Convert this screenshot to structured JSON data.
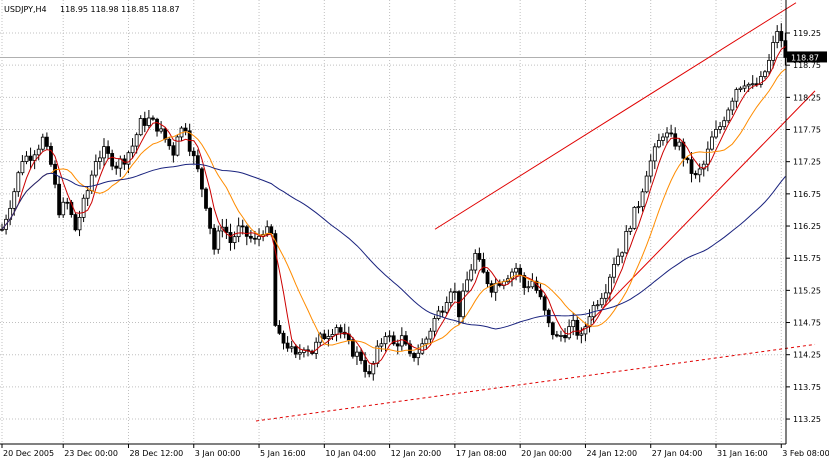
{
  "header": {
    "symbol_timeframe": "USDJPY,H4",
    "ohlc": "118.95 118.98 118.85 118.87"
  },
  "price_label": "118.87",
  "chart_data": {
    "type": "candlestick",
    "title": "USDJPY,H4",
    "ylim": [
      113.25,
      119.5
    ],
    "y_ticks": [
      "119.25",
      "118.75",
      "118.25",
      "117.75",
      "117.25",
      "116.75",
      "116.25",
      "115.75",
      "115.25",
      "114.75",
      "114.25",
      "113.75",
      "113.25"
    ],
    "y_tick_values": [
      119.25,
      118.75,
      118.25,
      117.75,
      117.25,
      116.75,
      116.25,
      115.75,
      115.25,
      114.75,
      114.25,
      113.75,
      113.25
    ],
    "x_ticks": [
      "20 Dec 2005",
      "23 Dec 00:00",
      "28 Dec 12:00",
      "3 Jan 00:00",
      "5 Jan 16:00",
      "10 Jan 04:00",
      "12 Jan 20:00",
      "17 Jan 08:00",
      "20 Jan 00:00",
      "24 Jan 12:00",
      "27 Jan 04:00",
      "31 Jan 16:00",
      "3 Feb 08:00"
    ],
    "x_tick_index": [
      0,
      15,
      31,
      47,
      63,
      79,
      95,
      111,
      127,
      143,
      159,
      175,
      191
    ],
    "bar_count": 193,
    "current_price": 118.87,
    "grid": true,
    "colors": {
      "background": "#ffffff",
      "grid": "#c0c0c0",
      "candle": "#000000",
      "ma_fast": "#cc0000",
      "ma_mid": "#ff8c00",
      "ma_slow": "#1a237e",
      "channel": "#e00000"
    },
    "anchors": [
      [
        0,
        116.2
      ],
      [
        3,
        116.8
      ],
      [
        5,
        117.3
      ],
      [
        7,
        117.35
      ],
      [
        9,
        117.5
      ],
      [
        10,
        117.6
      ],
      [
        12,
        117.2
      ],
      [
        14,
        116.5
      ],
      [
        16,
        116.6
      ],
      [
        18,
        116.2
      ],
      [
        21,
        116.8
      ],
      [
        23,
        117.3
      ],
      [
        25,
        117.4
      ],
      [
        28,
        117.2
      ],
      [
        30,
        117.3
      ],
      [
        32,
        117.5
      ],
      [
        34,
        117.85
      ],
      [
        36,
        117.9
      ],
      [
        38,
        117.8
      ],
      [
        40,
        117.6
      ],
      [
        42,
        117.4
      ],
      [
        43,
        117.7
      ],
      [
        45,
        117.8
      ],
      [
        46,
        117.5
      ],
      [
        47,
        117.3
      ],
      [
        48,
        117.1
      ],
      [
        50,
        116.6
      ],
      [
        52,
        115.9
      ],
      [
        54,
        116.3
      ],
      [
        56,
        116.0
      ],
      [
        58,
        116.2
      ],
      [
        60,
        116.1
      ],
      [
        62,
        116.0
      ],
      [
        64,
        116.2
      ],
      [
        66,
        116.1
      ],
      [
        67,
        114.7
      ],
      [
        68,
        114.5
      ],
      [
        70,
        114.4
      ],
      [
        72,
        114.2
      ],
      [
        74,
        114.4
      ],
      [
        76,
        114.3
      ],
      [
        78,
        114.5
      ],
      [
        80,
        114.6
      ],
      [
        82,
        114.7
      ],
      [
        84,
        114.5
      ],
      [
        86,
        114.3
      ],
      [
        88,
        114.2
      ],
      [
        90,
        113.9
      ],
      [
        92,
        114.3
      ],
      [
        94,
        114.6
      ],
      [
        96,
        114.4
      ],
      [
        98,
        114.5
      ],
      [
        100,
        114.2
      ],
      [
        102,
        114.3
      ],
      [
        104,
        114.5
      ],
      [
        106,
        114.8
      ],
      [
        108,
        115.0
      ],
      [
        110,
        115.3
      ],
      [
        111,
        115.2
      ],
      [
        112,
        114.9
      ],
      [
        114,
        115.4
      ],
      [
        116,
        115.8
      ],
      [
        118,
        115.5
      ],
      [
        120,
        115.3
      ],
      [
        122,
        115.4
      ],
      [
        124,
        115.5
      ],
      [
        126,
        115.6
      ],
      [
        128,
        115.3
      ],
      [
        130,
        115.4
      ],
      [
        132,
        115.1
      ],
      [
        134,
        114.7
      ],
      [
        136,
        114.5
      ],
      [
        138,
        114.6
      ],
      [
        140,
        114.7
      ],
      [
        142,
        114.5
      ],
      [
        144,
        114.9
      ],
      [
        146,
        115.1
      ],
      [
        148,
        115.3
      ],
      [
        150,
        115.7
      ],
      [
        152,
        115.9
      ],
      [
        154,
        116.3
      ],
      [
        156,
        116.6
      ],
      [
        158,
        117.1
      ],
      [
        160,
        117.4
      ],
      [
        162,
        117.7
      ],
      [
        164,
        117.6
      ],
      [
        166,
        117.5
      ],
      [
        168,
        117.2
      ],
      [
        170,
        117.0
      ],
      [
        172,
        117.2
      ],
      [
        174,
        117.6
      ],
      [
        176,
        117.8
      ],
      [
        178,
        118.1
      ],
      [
        180,
        118.4
      ],
      [
        182,
        118.5
      ],
      [
        184,
        118.4
      ],
      [
        186,
        118.5
      ],
      [
        188,
        118.8
      ],
      [
        190,
        119.3
      ],
      [
        192,
        118.87
      ]
    ],
    "ma_periods": [
      5,
      13,
      55
    ],
    "trendlines": [
      {
        "style": "solid",
        "points": [
          [
            435,
            116.2,
            796,
            119.72
          ]
        ]
      },
      {
        "style": "solid",
        "points": [
          [
            578,
            114.57,
            815,
            118.35
          ]
        ]
      },
      {
        "style": "dashed",
        "points": [
          [
            256,
            113.22,
            815,
            114.41
          ]
        ]
      }
    ]
  }
}
